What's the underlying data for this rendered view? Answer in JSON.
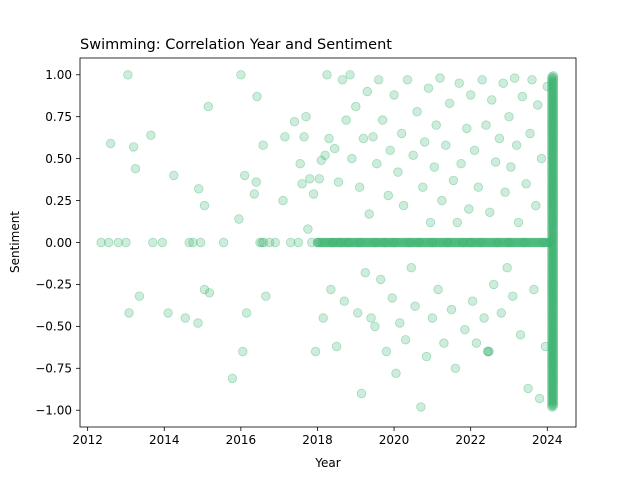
{
  "chart_data": {
    "type": "scatter",
    "title": "Swimming: Correlation Year and Sentiment",
    "xlabel": "Year",
    "ylabel": "Sentiment",
    "xlim": [
      2011.8,
      2024.75
    ],
    "ylim": [
      -1.1,
      1.1
    ],
    "xticks": [
      2012,
      2014,
      2016,
      2018,
      2020,
      2022,
      2024
    ],
    "yticks": [
      -1.0,
      -0.75,
      -0.5,
      -0.25,
      0.0,
      0.25,
      0.5,
      0.75,
      1.0
    ],
    "xtick_labels": [
      "2012",
      "2014",
      "2016",
      "2018",
      "2020",
      "2022",
      "2024"
    ],
    "ytick_labels": [
      "−1.00",
      "−0.75",
      "−0.50",
      "−0.25",
      "0.00",
      "0.25",
      "0.50",
      "0.75",
      "1.00"
    ],
    "grid": false,
    "legend": "none",
    "marker_color": "#3cb371",
    "marker_alpha": 0.25,
    "points": [
      {
        "x": 2012.35,
        "y": 0.0
      },
      {
        "x": 2012.55,
        "y": 0.0
      },
      {
        "x": 2012.6,
        "y": 0.59
      },
      {
        "x": 2012.8,
        "y": 0.0
      },
      {
        "x": 2013.0,
        "y": 0.0
      },
      {
        "x": 2013.05,
        "y": 1.0
      },
      {
        "x": 2013.08,
        "y": -0.42
      },
      {
        "x": 2013.2,
        "y": 0.57
      },
      {
        "x": 2013.25,
        "y": 0.44
      },
      {
        "x": 2013.35,
        "y": -0.32
      },
      {
        "x": 2013.65,
        "y": 0.64
      },
      {
        "x": 2013.7,
        "y": 0.0
      },
      {
        "x": 2013.95,
        "y": 0.0
      },
      {
        "x": 2014.1,
        "y": -0.42
      },
      {
        "x": 2014.25,
        "y": 0.4
      },
      {
        "x": 2014.55,
        "y": -0.45
      },
      {
        "x": 2014.65,
        "y": 0.0
      },
      {
        "x": 2014.75,
        "y": 0.0
      },
      {
        "x": 2014.88,
        "y": -0.48
      },
      {
        "x": 2014.9,
        "y": 0.32
      },
      {
        "x": 2014.95,
        "y": 0.0
      },
      {
        "x": 2015.05,
        "y": 0.22
      },
      {
        "x": 2015.05,
        "y": -0.28
      },
      {
        "x": 2015.15,
        "y": 0.81
      },
      {
        "x": 2015.18,
        "y": -0.3
      },
      {
        "x": 2015.55,
        "y": 0.0
      },
      {
        "x": 2015.78,
        "y": -0.81
      },
      {
        "x": 2015.95,
        "y": 0.14
      },
      {
        "x": 2016.0,
        "y": 1.0
      },
      {
        "x": 2016.05,
        "y": -0.65
      },
      {
        "x": 2016.1,
        "y": 0.4
      },
      {
        "x": 2016.15,
        "y": -0.42
      },
      {
        "x": 2016.35,
        "y": 0.29
      },
      {
        "x": 2016.4,
        "y": 0.36
      },
      {
        "x": 2016.42,
        "y": 0.87
      },
      {
        "x": 2016.5,
        "y": 0.0
      },
      {
        "x": 2016.55,
        "y": 0.0
      },
      {
        "x": 2016.58,
        "y": 0.58
      },
      {
        "x": 2016.6,
        "y": 0.0
      },
      {
        "x": 2016.65,
        "y": -0.32
      },
      {
        "x": 2016.75,
        "y": 0.0
      },
      {
        "x": 2016.9,
        "y": 0.0
      },
      {
        "x": 2017.1,
        "y": 0.25
      },
      {
        "x": 2017.15,
        "y": 0.63
      },
      {
        "x": 2017.3,
        "y": 0.0
      },
      {
        "x": 2017.4,
        "y": 0.72
      },
      {
        "x": 2017.5,
        "y": 0.0
      },
      {
        "x": 2017.55,
        "y": 0.47
      },
      {
        "x": 2017.6,
        "y": 0.35
      },
      {
        "x": 2017.65,
        "y": 0.63
      },
      {
        "x": 2017.7,
        "y": 0.75
      },
      {
        "x": 2017.75,
        "y": 0.08
      },
      {
        "x": 2017.8,
        "y": 0.38
      },
      {
        "x": 2017.85,
        "y": 0.0
      },
      {
        "x": 2017.9,
        "y": 0.29
      },
      {
        "x": 2017.95,
        "y": -0.65
      },
      {
        "x": 2018.0,
        "y": 0.0
      },
      {
        "x": 2018.05,
        "y": 0.38
      },
      {
        "x": 2018.1,
        "y": 0.49
      },
      {
        "x": 2018.15,
        "y": -0.45
      },
      {
        "x": 2018.2,
        "y": 0.52
      },
      {
        "x": 2018.25,
        "y": 1.0
      },
      {
        "x": 2018.3,
        "y": 0.62
      },
      {
        "x": 2018.35,
        "y": -0.28
      },
      {
        "x": 2018.4,
        "y": 0.0
      },
      {
        "x": 2018.45,
        "y": 0.56
      },
      {
        "x": 2018.5,
        "y": -0.62
      },
      {
        "x": 2018.55,
        "y": 0.36
      },
      {
        "x": 2018.6,
        "y": 0.0
      },
      {
        "x": 2018.65,
        "y": 0.97
      },
      {
        "x": 2018.7,
        "y": -0.35
      },
      {
        "x": 2018.75,
        "y": 0.73
      },
      {
        "x": 2018.8,
        "y": 0.0
      },
      {
        "x": 2018.85,
        "y": 1.0
      },
      {
        "x": 2018.9,
        "y": 0.5
      },
      {
        "x": 2019.0,
        "y": 0.81
      },
      {
        "x": 2019.05,
        "y": -0.42
      },
      {
        "x": 2019.1,
        "y": 0.0
      },
      {
        "x": 2019.1,
        "y": 0.33
      },
      {
        "x": 2019.15,
        "y": -0.9
      },
      {
        "x": 2019.2,
        "y": 0.62
      },
      {
        "x": 2019.25,
        "y": -0.18
      },
      {
        "x": 2019.3,
        "y": 0.9
      },
      {
        "x": 2019.35,
        "y": 0.17
      },
      {
        "x": 2019.4,
        "y": -0.45
      },
      {
        "x": 2019.45,
        "y": 0.63
      },
      {
        "x": 2019.5,
        "y": 0.0
      },
      {
        "x": 2019.5,
        "y": -0.5
      },
      {
        "x": 2019.55,
        "y": 0.47
      },
      {
        "x": 2019.6,
        "y": 0.97
      },
      {
        "x": 2019.65,
        "y": -0.22
      },
      {
        "x": 2019.7,
        "y": 0.73
      },
      {
        "x": 2019.75,
        "y": 0.0
      },
      {
        "x": 2019.8,
        "y": -0.65
      },
      {
        "x": 2019.85,
        "y": 0.28
      },
      {
        "x": 2019.9,
        "y": 0.55
      },
      {
        "x": 2019.95,
        "y": -0.33
      },
      {
        "x": 2020.0,
        "y": 0.0
      },
      {
        "x": 2020.0,
        "y": 0.88
      },
      {
        "x": 2020.05,
        "y": -0.78
      },
      {
        "x": 2020.1,
        "y": 0.42
      },
      {
        "x": 2020.15,
        "y": -0.48
      },
      {
        "x": 2020.2,
        "y": 0.65
      },
      {
        "x": 2020.25,
        "y": 0.22
      },
      {
        "x": 2020.3,
        "y": -0.58
      },
      {
        "x": 2020.35,
        "y": 0.97
      },
      {
        "x": 2020.4,
        "y": 0.0
      },
      {
        "x": 2020.45,
        "y": -0.15
      },
      {
        "x": 2020.5,
        "y": 0.52
      },
      {
        "x": 2020.55,
        "y": -0.38
      },
      {
        "x": 2020.6,
        "y": 0.78
      },
      {
        "x": 2020.65,
        "y": 0.0
      },
      {
        "x": 2020.7,
        "y": -0.98
      },
      {
        "x": 2020.75,
        "y": 0.33
      },
      {
        "x": 2020.8,
        "y": 0.6
      },
      {
        "x": 2020.85,
        "y": -0.68
      },
      {
        "x": 2020.9,
        "y": 0.92
      },
      {
        "x": 2020.95,
        "y": 0.12
      },
      {
        "x": 2021.0,
        "y": 0.0
      },
      {
        "x": 2021.0,
        "y": -0.45
      },
      {
        "x": 2021.05,
        "y": 0.45
      },
      {
        "x": 2021.1,
        "y": 0.7
      },
      {
        "x": 2021.15,
        "y": -0.28
      },
      {
        "x": 2021.2,
        "y": 0.98
      },
      {
        "x": 2021.25,
        "y": 0.25
      },
      {
        "x": 2021.3,
        "y": -0.6
      },
      {
        "x": 2021.35,
        "y": 0.58
      },
      {
        "x": 2021.4,
        "y": 0.0
      },
      {
        "x": 2021.45,
        "y": 0.83
      },
      {
        "x": 2021.5,
        "y": -0.4
      },
      {
        "x": 2021.55,
        "y": 0.37
      },
      {
        "x": 2021.6,
        "y": -0.75
      },
      {
        "x": 2021.65,
        "y": 0.12
      },
      {
        "x": 2021.7,
        "y": 0.95
      },
      {
        "x": 2021.75,
        "y": 0.47
      },
      {
        "x": 2021.8,
        "y": 0.0
      },
      {
        "x": 2021.85,
        "y": -0.52
      },
      {
        "x": 2021.9,
        "y": 0.68
      },
      {
        "x": 2021.95,
        "y": 0.2
      },
      {
        "x": 2022.0,
        "y": 0.0
      },
      {
        "x": 2022.0,
        "y": 0.88
      },
      {
        "x": 2022.05,
        "y": -0.35
      },
      {
        "x": 2022.1,
        "y": 0.55
      },
      {
        "x": 2022.15,
        "y": -0.6
      },
      {
        "x": 2022.2,
        "y": 0.33
      },
      {
        "x": 2022.25,
        "y": 0.0
      },
      {
        "x": 2022.3,
        "y": 0.97
      },
      {
        "x": 2022.35,
        "y": -0.45
      },
      {
        "x": 2022.4,
        "y": 0.7
      },
      {
        "x": 2022.45,
        "y": -0.65
      },
      {
        "x": 2022.5,
        "y": 0.18
      },
      {
        "x": 2022.55,
        "y": 0.85
      },
      {
        "x": 2022.6,
        "y": -0.25
      },
      {
        "x": 2022.65,
        "y": 0.48
      },
      {
        "x": 2022.7,
        "y": 0.0
      },
      {
        "x": 2022.75,
        "y": 0.62
      },
      {
        "x": 2022.8,
        "y": -0.42
      },
      {
        "x": 2022.85,
        "y": 0.95
      },
      {
        "x": 2022.9,
        "y": 0.3
      },
      {
        "x": 2022.95,
        "y": -0.15
      },
      {
        "x": 2023.0,
        "y": 0.0
      },
      {
        "x": 2023.0,
        "y": 0.75
      },
      {
        "x": 2023.05,
        "y": 0.45
      },
      {
        "x": 2023.1,
        "y": -0.32
      },
      {
        "x": 2023.15,
        "y": 0.98
      },
      {
        "x": 2023.2,
        "y": 0.58
      },
      {
        "x": 2023.25,
        "y": 0.12
      },
      {
        "x": 2023.3,
        "y": -0.55
      },
      {
        "x": 2023.35,
        "y": 0.87
      },
      {
        "x": 2023.4,
        "y": 0.0
      },
      {
        "x": 2023.45,
        "y": 0.35
      },
      {
        "x": 2023.5,
        "y": -0.87
      },
      {
        "x": 2023.55,
        "y": 0.65
      },
      {
        "x": 2023.6,
        "y": 0.97
      },
      {
        "x": 2023.65,
        "y": -0.28
      },
      {
        "x": 2023.7,
        "y": 0.22
      },
      {
        "x": 2023.75,
        "y": 0.82
      },
      {
        "x": 2023.8,
        "y": -0.93
      },
      {
        "x": 2023.85,
        "y": 0.5
      },
      {
        "x": 2023.9,
        "y": 0.0
      },
      {
        "x": 2023.95,
        "y": -0.62
      },
      {
        "x": 2024.0,
        "y": 0.93
      },
      {
        "x": 2022.45,
        "y": -0.65
      },
      {
        "x": 2022.48,
        "y": -0.65
      }
    ],
    "zero_band": {
      "x_start": 2018.0,
      "x_end": 2024.1,
      "y": 0.0
    },
    "vertical_band": {
      "x": 2024.12,
      "y_min": -0.98,
      "y_max": 1.0
    }
  }
}
